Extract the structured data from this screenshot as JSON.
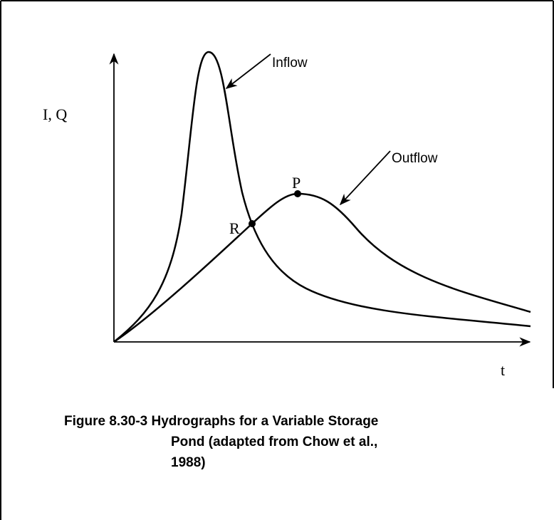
{
  "figure": {
    "y_axis_label": "I, Q",
    "x_axis_label": "t",
    "curves": [
      {
        "label": "Inflow"
      },
      {
        "label": "Outflow"
      }
    ],
    "points": [
      {
        "label": "P"
      },
      {
        "label": "R"
      }
    ],
    "caption": [
      "Figure 8.30-3 Hydrographs for a Variable Storage",
      "Pond (adapted from Chow et al.,",
      "1988)"
    ]
  }
}
